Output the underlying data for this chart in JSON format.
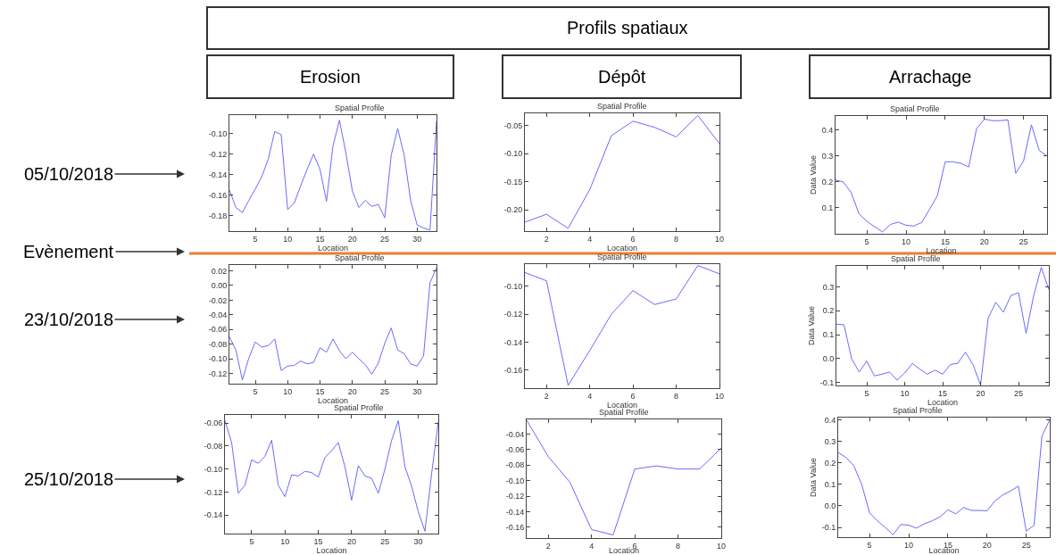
{
  "chart_data": [
    {
      "type": "other",
      "title": "Profils spatiaux",
      "annotations": [
        "Erosion",
        "Dépôt",
        "Arrachage",
        "05/10/2018",
        "Evènement",
        "23/10/2018",
        "25/10/2018"
      ]
    },
    {
      "type": "line",
      "title": "Spatial Profile",
      "xlabel": "Location",
      "x": [
        1,
        2,
        3,
        4,
        5,
        6,
        7,
        8,
        9,
        10,
        11,
        12,
        13,
        14,
        15,
        16,
        17,
        18,
        19,
        20,
        21,
        22,
        23,
        24,
        25,
        26,
        27,
        28,
        29,
        30,
        31,
        32,
        33
      ],
      "xlim": [
        1,
        33
      ],
      "xticks": [
        5,
        10,
        15,
        20,
        25,
        30
      ],
      "ylim": [
        -0.195,
        -0.082
      ],
      "yticks": [
        {
          "value": -0.18,
          "label": "-0.18"
        },
        {
          "value": -0.16,
          "label": "-0.16"
        },
        {
          "value": -0.14,
          "label": "-0.14"
        },
        {
          "value": -0.12,
          "label": "-0.12"
        },
        {
          "value": -0.1,
          "label": "-0.10"
        }
      ],
      "series": [
        {
          "color": "#6a6aff",
          "values": [
            -0.155,
            -0.172,
            -0.177,
            -0.165,
            -0.154,
            -0.142,
            -0.125,
            -0.098,
            -0.101,
            -0.174,
            -0.168,
            -0.151,
            -0.135,
            -0.12,
            -0.135,
            -0.166,
            -0.112,
            -0.087,
            -0.119,
            -0.156,
            -0.172,
            -0.165,
            -0.171,
            -0.169,
            -0.182,
            -0.121,
            -0.095,
            -0.121,
            -0.165,
            -0.189,
            -0.192,
            -0.194,
            -0.088
          ]
        }
      ]
    },
    {
      "type": "line",
      "title": "Spatial Profile",
      "xlabel": "Location",
      "x": [
        1,
        2,
        3,
        4,
        5,
        6,
        7,
        8,
        9,
        10
      ],
      "xlim": [
        1,
        10
      ],
      "xticks": [
        2,
        4,
        6,
        8,
        10
      ],
      "ylim": [
        -0.238,
        -0.028
      ],
      "yticks": [
        {
          "value": -0.2,
          "label": "-0.20"
        },
        {
          "value": -0.15,
          "label": "-0.15"
        },
        {
          "value": -0.1,
          "label": "-0.10"
        },
        {
          "value": -0.05,
          "label": "-0.05"
        }
      ],
      "series": [
        {
          "color": "#6a6aff",
          "values": [
            -0.222,
            -0.208,
            -0.233,
            -0.164,
            -0.068,
            -0.042,
            -0.053,
            -0.07,
            -0.032,
            -0.082
          ]
        }
      ]
    },
    {
      "type": "line",
      "title": "Spatial Profile",
      "xlabel": "Location",
      "ylabel": "Data Value",
      "x": [
        1,
        2,
        3,
        4,
        5,
        6,
        7,
        8,
        9,
        10,
        11,
        12,
        13,
        14,
        15,
        16,
        17,
        18,
        19,
        20,
        21,
        22,
        23,
        24,
        25,
        26,
        27,
        28
      ],
      "xlim": [
        1,
        28
      ],
      "xticks": [
        5,
        10,
        15,
        20,
        25
      ],
      "ylim": [
        0,
        0.455
      ],
      "yticks": [
        0.1,
        0.2,
        0.3,
        0.4
      ],
      "series": [
        {
          "color": "#6a6aff",
          "values": [
            0.208,
            0.2,
            0.159,
            0.077,
            0.048,
            0.027,
            0.007,
            0.036,
            0.045,
            0.033,
            0.03,
            0.044,
            0.094,
            0.147,
            0.278,
            0.278,
            0.272,
            0.258,
            0.406,
            0.443,
            0.437,
            0.437,
            0.44,
            0.234,
            0.281,
            0.421,
            0.322,
            0.3
          ]
        }
      ]
    },
    {
      "type": "line",
      "title": "Spatial Profile",
      "xlabel": "Location",
      "x": [
        1,
        2,
        3,
        4,
        5,
        6,
        7,
        8,
        9,
        10,
        11,
        12,
        13,
        14,
        15,
        16,
        17,
        18,
        19,
        20,
        21,
        22,
        23,
        24,
        25,
        26,
        27,
        28,
        29,
        30,
        31,
        32,
        33
      ],
      "xlim": [
        1,
        33
      ],
      "xticks": [
        5,
        10,
        15,
        20,
        25,
        30
      ],
      "ylim": [
        -0.134,
        0.028
      ],
      "yticks": [
        {
          "value": -0.12,
          "label": "-0.12"
        },
        {
          "value": -0.1,
          "label": "-0.10"
        },
        {
          "value": -0.08,
          "label": "-0.08"
        },
        {
          "value": -0.06,
          "label": "-0.06"
        },
        {
          "value": -0.04,
          "label": "-0.04"
        },
        {
          "value": -0.02,
          "label": "-0.02"
        },
        {
          "value": 0,
          "label": "0.00"
        },
        {
          "value": 0.02,
          "label": "0.02"
        }
      ],
      "series": [
        {
          "color": "#6a6aff",
          "values": [
            -0.07,
            -0.088,
            -0.129,
            -0.099,
            -0.077,
            -0.084,
            -0.082,
            -0.073,
            -0.116,
            -0.11,
            -0.109,
            -0.103,
            -0.107,
            -0.105,
            -0.085,
            -0.091,
            -0.073,
            -0.089,
            -0.1,
            -0.091,
            -0.1,
            -0.108,
            -0.121,
            -0.106,
            -0.079,
            -0.058,
            -0.088,
            -0.093,
            -0.107,
            -0.11,
            -0.096,
            0.004,
            0.024
          ]
        }
      ]
    },
    {
      "type": "line",
      "title": "Spatial Profile",
      "xlabel": "Location",
      "x": [
        1,
        2,
        3,
        4,
        5,
        6,
        7,
        8,
        9,
        10
      ],
      "xlim": [
        1,
        10
      ],
      "xticks": [
        2,
        4,
        6,
        8,
        10
      ],
      "ylim": [
        -0.173,
        -0.084
      ],
      "yticks": [
        {
          "value": -0.16,
          "label": "-0.16"
        },
        {
          "value": -0.14,
          "label": "-0.14"
        },
        {
          "value": -0.12,
          "label": "-0.12"
        },
        {
          "value": -0.1,
          "label": "-0.10"
        }
      ],
      "series": [
        {
          "color": "#6a6aff",
          "values": [
            -0.09,
            -0.096,
            -0.171,
            -0.146,
            -0.12,
            -0.103,
            -0.113,
            -0.109,
            -0.085,
            -0.091
          ]
        }
      ]
    },
    {
      "type": "line",
      "title": "Spatial Profile",
      "xlabel": "Location",
      "ylabel": "Data Value",
      "x": [
        1,
        2,
        3,
        4,
        5,
        6,
        7,
        8,
        9,
        10,
        11,
        12,
        13,
        14,
        15,
        16,
        17,
        18,
        19,
        20,
        21,
        22,
        23,
        24,
        25,
        26,
        27,
        28,
        29
      ],
      "xlim": [
        1,
        29
      ],
      "xticks": [
        5,
        10,
        15,
        20,
        25
      ],
      "ylim": [
        -0.112,
        0.387
      ],
      "yticks": [
        {
          "value": -0.1,
          "label": "-0.1"
        },
        {
          "value": 0,
          "label": "0.0"
        },
        0.1,
        0.2,
        0.3
      ],
      "series": [
        {
          "color": "#6a6aff",
          "values": [
            0.144,
            0.141,
            0.0,
            -0.056,
            -0.01,
            -0.072,
            -0.065,
            -0.056,
            -0.09,
            -0.06,
            -0.02,
            -0.044,
            -0.065,
            -0.048,
            -0.065,
            -0.025,
            -0.019,
            0.027,
            -0.025,
            -0.11,
            0.169,
            0.235,
            0.194,
            0.263,
            0.275,
            0.106,
            0.263,
            0.381,
            0.288
          ]
        }
      ]
    },
    {
      "type": "line",
      "title": "Spatial Profile",
      "xlabel": "Location",
      "x": [
        1,
        2,
        3,
        4,
        5,
        6,
        7,
        8,
        9,
        10,
        11,
        12,
        13,
        14,
        15,
        16,
        17,
        18,
        19,
        20,
        21,
        22,
        23,
        24,
        25,
        26,
        27,
        28,
        29,
        30,
        31,
        32,
        33
      ],
      "xlim": [
        1,
        33
      ],
      "xticks": [
        5,
        10,
        15,
        20,
        25,
        30
      ],
      "ylim": [
        -0.156,
        -0.053
      ],
      "yticks": [
        {
          "value": -0.14,
          "label": "-0.14"
        },
        {
          "value": -0.12,
          "label": "-0.12"
        },
        {
          "value": -0.1,
          "label": "-0.10"
        },
        {
          "value": -0.08,
          "label": "-0.08"
        },
        {
          "value": -0.06,
          "label": "-0.06"
        }
      ],
      "series": [
        {
          "color": "#6a6aff",
          "values": [
            -0.058,
            -0.077,
            -0.121,
            -0.114,
            -0.092,
            -0.095,
            -0.089,
            -0.075,
            -0.114,
            -0.124,
            -0.105,
            -0.106,
            -0.102,
            -0.103,
            -0.107,
            -0.09,
            -0.084,
            -0.077,
            -0.098,
            -0.127,
            -0.097,
            -0.106,
            -0.108,
            -0.121,
            -0.1,
            -0.075,
            -0.058,
            -0.098,
            -0.115,
            -0.137,
            -0.154,
            -0.104,
            -0.059
          ]
        }
      ]
    },
    {
      "type": "line",
      "title": "Spatial Profile",
      "xlabel": "Location",
      "x": [
        1,
        2,
        3,
        4,
        5,
        6,
        7,
        8,
        9,
        10
      ],
      "xlim": [
        1,
        10
      ],
      "xticks": [
        2,
        4,
        6,
        8,
        10
      ],
      "ylim": [
        -0.174,
        -0.021
      ],
      "yticks": [
        {
          "value": -0.16,
          "label": "-0.16"
        },
        {
          "value": -0.14,
          "label": "-0.14"
        },
        {
          "value": -0.12,
          "label": "-0.12"
        },
        {
          "value": -0.1,
          "label": "-0.10"
        },
        {
          "value": -0.08,
          "label": "-0.08"
        },
        {
          "value": -0.06,
          "label": "-0.06"
        },
        {
          "value": -0.04,
          "label": "-0.04"
        }
      ],
      "series": [
        {
          "color": "#6a6aff",
          "values": [
            -0.022,
            -0.069,
            -0.102,
            -0.163,
            -0.17,
            -0.085,
            -0.081,
            -0.085,
            -0.085,
            -0.058
          ]
        }
      ]
    },
    {
      "type": "line",
      "title": "Spatial Profile",
      "xlabel": "Location",
      "ylabel": "Data Value",
      "x": [
        1,
        2,
        3,
        4,
        5,
        6,
        7,
        8,
        9,
        10,
        11,
        12,
        13,
        14,
        15,
        16,
        17,
        18,
        19,
        20,
        21,
        22,
        23,
        24,
        25,
        26,
        27,
        28
      ],
      "xlim": [
        1,
        28
      ],
      "xticks": [
        5,
        10,
        15,
        20,
        25
      ],
      "ylim": [
        -0.145,
        0.41
      ],
      "yticks": [
        {
          "value": -0.1,
          "label": "-0.1"
        },
        {
          "value": 0,
          "label": "0.0"
        },
        0.1,
        0.2,
        0.3,
        0.4
      ],
      "series": [
        {
          "color": "#6a6aff",
          "values": [
            0.248,
            0.225,
            0.186,
            0.1,
            -0.032,
            -0.069,
            -0.1,
            -0.134,
            -0.086,
            -0.09,
            -0.103,
            -0.083,
            -0.069,
            -0.051,
            -0.018,
            -0.037,
            -0.007,
            -0.021,
            -0.021,
            -0.023,
            0.023,
            0.051,
            0.069,
            0.092,
            -0.117,
            -0.09,
            0.324,
            0.4
          ]
        }
      ]
    }
  ]
}
